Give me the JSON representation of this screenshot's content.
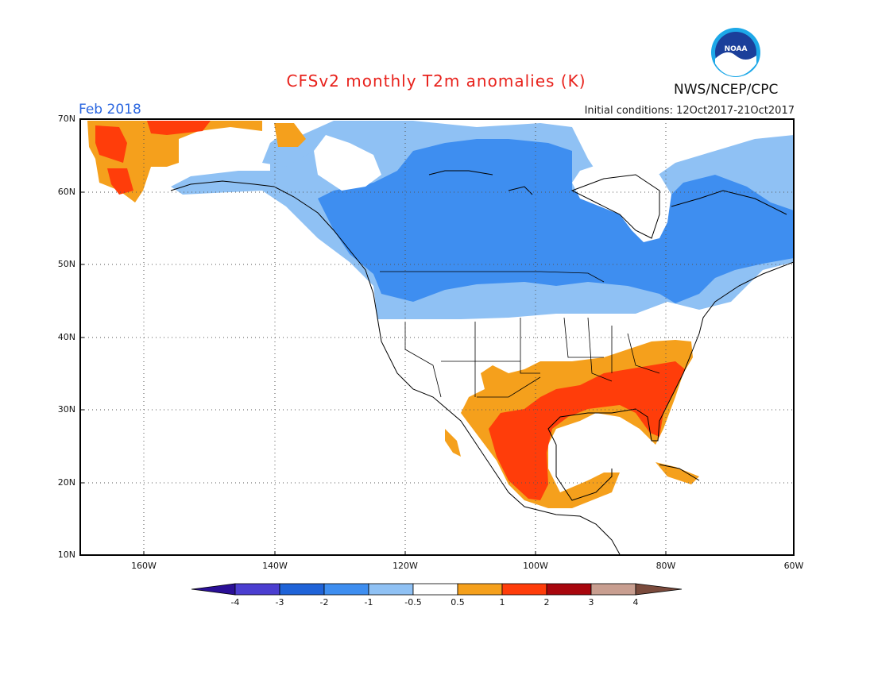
{
  "header": {
    "title": "CFSv2 monthly T2m anomalies (K)",
    "org": "NWS/NCEP/CPC",
    "valid_month": "Feb 2018",
    "initial_conditions": "Initial conditions: 12Oct2017-21Oct2017",
    "logo_text": "NOAA"
  },
  "axes": {
    "lat_labels": [
      "70N",
      "60N",
      "50N",
      "40N",
      "30N",
      "20N",
      "10N"
    ],
    "lon_labels": [
      "160W",
      "140W",
      "120W",
      "100W",
      "80W",
      "60W"
    ]
  },
  "colorbar": {
    "labels": [
      "-4",
      "-3",
      "-2",
      "-1",
      "-0.5",
      "0.5",
      "1",
      "2",
      "3",
      "4"
    ],
    "colors": [
      "#2a0f96",
      "#4b3ed0",
      "#1f63d8",
      "#3e8ef0",
      "#8fc1f4",
      "#ffffff",
      "#f5a01c",
      "#ff3d0a",
      "#a8060d",
      "#c89e90",
      "#7a4a3c"
    ]
  },
  "map_colors": {
    "light_blue": "#8fc1f4",
    "blue": "#3e8ef0",
    "orange": "#f5a01c",
    "red": "#ff3d0a"
  }
}
